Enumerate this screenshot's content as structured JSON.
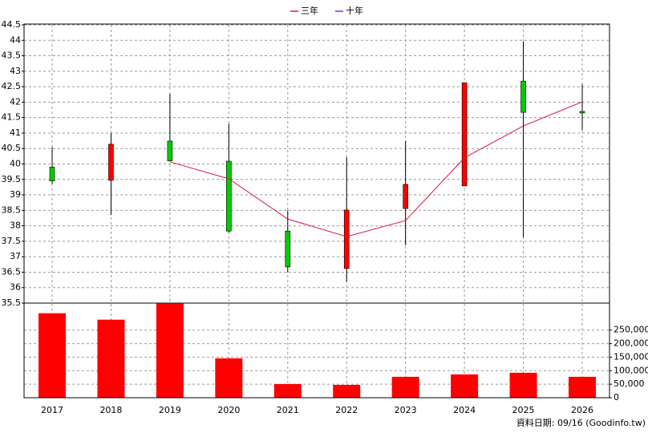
{
  "chart_data": {
    "type": "candlestick",
    "categories": [
      "2017",
      "2018",
      "2019",
      "2020",
      "2021",
      "2022",
      "2023",
      "2024",
      "2025",
      "2026"
    ],
    "candles": {
      "open": [
        39.9,
        39.47,
        40.74,
        40.09,
        37.83,
        36.62,
        38.56,
        39.29,
        42.68,
        41.7
      ],
      "high": [
        40.55,
        41.0,
        42.27,
        41.3,
        38.5,
        40.22,
        40.74,
        42.63,
        43.96,
        42.58
      ],
      "low": [
        39.35,
        38.35,
        40.1,
        37.78,
        36.49,
        36.18,
        37.37,
        39.29,
        37.63,
        41.1
      ],
      "close": [
        39.45,
        40.64,
        40.1,
        37.83,
        36.67,
        38.51,
        39.34,
        42.63,
        41.67,
        41.65
      ],
      "up_color": "#ff0000",
      "down_color": "#00cc00"
    },
    "series": [
      {
        "name": "三年",
        "color": "#dc143c",
        "values": [
          null,
          null,
          40.07,
          39.52,
          38.22,
          37.65,
          38.17,
          40.2,
          41.23,
          42.01
        ]
      },
      {
        "name": "十年",
        "color": "#8a2be2",
        "values": [
          null,
          null,
          null,
          null,
          null,
          null,
          null,
          null,
          null,
          null
        ]
      }
    ],
    "volume": {
      "color": "#ff0000",
      "axis": "y2",
      "values": [
        312500,
        288700,
        348200,
        145800,
        50600,
        47600,
        77400,
        86300,
        92300,
        77400
      ]
    },
    "ylim": [
      35.5,
      44.5
    ],
    "yticks": [
      35.5,
      36,
      36.5,
      37,
      37.5,
      38,
      38.5,
      39,
      39.5,
      40,
      40.5,
      41,
      41.5,
      42,
      42.5,
      43,
      43.5,
      44,
      44.5
    ],
    "y2lim": [
      0,
      350000
    ],
    "y2ticks": [
      0,
      {
        "value": 50000,
        "label": "50,000"
      },
      {
        "value": 100000,
        "label": "100,000"
      },
      {
        "value": 150000,
        "label": "150,000"
      },
      {
        "value": 200000,
        "label": "200,000"
      },
      {
        "value": 250000,
        "label": "250,000"
      }
    ],
    "grid": true,
    "legend": "top",
    "footer": "資料日期: 09/16  (Goodinfo.tw)"
  }
}
